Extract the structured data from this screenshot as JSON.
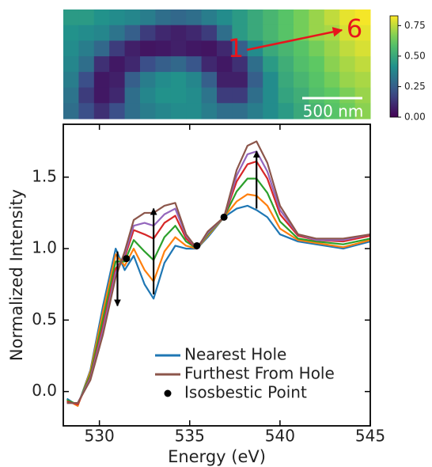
{
  "chart_data": [
    {
      "type": "heatmap",
      "values": [
        [
          0.45,
          0.45,
          0.42,
          0.4,
          0.38,
          0.35,
          0.3,
          0.28,
          0.3,
          0.35,
          0.4,
          0.45,
          0.5,
          0.55,
          0.6,
          0.65,
          0.7,
          0.75,
          0.8,
          0.82
        ],
        [
          0.42,
          0.4,
          0.38,
          0.32,
          0.25,
          0.15,
          0.1,
          0.08,
          0.1,
          0.15,
          0.3,
          0.45,
          0.5,
          0.55,
          0.6,
          0.65,
          0.7,
          0.72,
          0.78,
          0.8
        ],
        [
          0.4,
          0.35,
          0.28,
          0.15,
          0.08,
          0.05,
          0.06,
          0.08,
          0.06,
          0.05,
          0.1,
          0.25,
          0.4,
          0.5,
          0.55,
          0.6,
          0.65,
          0.7,
          0.75,
          0.78
        ],
        [
          0.38,
          0.3,
          0.12,
          0.06,
          0.1,
          0.2,
          0.25,
          0.28,
          0.22,
          0.1,
          0.06,
          0.12,
          0.3,
          0.45,
          0.52,
          0.58,
          0.62,
          0.68,
          0.72,
          0.75
        ],
        [
          0.35,
          0.2,
          0.06,
          0.08,
          0.25,
          0.35,
          0.4,
          0.42,
          0.38,
          0.25,
          0.08,
          0.08,
          0.25,
          0.4,
          0.5,
          0.55,
          0.6,
          0.65,
          0.7,
          0.72
        ],
        [
          0.32,
          0.15,
          0.06,
          0.1,
          0.3,
          0.38,
          0.42,
          0.42,
          0.4,
          0.32,
          0.15,
          0.15,
          0.3,
          0.4,
          0.48,
          0.52,
          0.58,
          0.62,
          0.66,
          0.7
        ],
        [
          0.3,
          0.2,
          0.12,
          0.2,
          0.3,
          0.35,
          0.38,
          0.4,
          0.4,
          0.35,
          0.3,
          0.3,
          0.35,
          0.4,
          0.45,
          0.5,
          0.55,
          0.6,
          0.64,
          0.68
        ]
      ],
      "colormap": "viridis",
      "clim": [
        0,
        0.83
      ],
      "cticks": [
        {
          "value": 0,
          "label": "0.00"
        },
        {
          "value": 0.25,
          "label": "0.25"
        },
        {
          "value": 0.5,
          "label": "0.50"
        },
        {
          "value": 0.75,
          "label": "0.75"
        }
      ],
      "start_label": "1",
      "end_label": "6",
      "scale_bar": "500 nm"
    },
    {
      "type": "line",
      "xlabel": "Energy (eV)",
      "ylabel": "Normalized Intensity",
      "xlim": [
        528,
        545
      ],
      "ylim": [
        -0.24,
        1.87
      ],
      "xticks": [
        530,
        535,
        540,
        545
      ],
      "yticks": [
        {
          "value": 0,
          "label": "0.0"
        },
        0.5,
        {
          "value": 1,
          "label": "1.0"
        },
        1.5
      ],
      "x": [
        528.2,
        528.8,
        529.5,
        530.2,
        530.9,
        531.4,
        531.9,
        532.5,
        533.0,
        533.6,
        534.2,
        534.8,
        535.4,
        536.0,
        536.9,
        537.6,
        538.2,
        538.7,
        539.3,
        540.0,
        541.0,
        542.0,
        543.5,
        545.0
      ],
      "series": [
        {
          "name": "Nearest Hole",
          "color": "#1f77b4",
          "values": [
            -0.05,
            -0.1,
            0.15,
            0.6,
            1.0,
            0.85,
            0.95,
            0.75,
            0.65,
            0.9,
            1.02,
            1.0,
            1.0,
            1.08,
            1.22,
            1.28,
            1.3,
            1.27,
            1.22,
            1.1,
            1.05,
            1.03,
            1.0,
            1.05
          ]
        },
        {
          "color": "#ff7f0e",
          "values": [
            -0.06,
            -0.1,
            0.14,
            0.56,
            0.96,
            0.88,
            1.0,
            0.85,
            0.77,
            0.98,
            1.08,
            1.02,
            1.0,
            1.09,
            1.22,
            1.33,
            1.38,
            1.37,
            1.3,
            1.14,
            1.06,
            1.04,
            1.01,
            1.06
          ]
        },
        {
          "color": "#2ca02c",
          "values": [
            -0.06,
            -0.09,
            0.12,
            0.51,
            0.91,
            0.91,
            1.06,
            0.98,
            0.92,
            1.08,
            1.16,
            1.05,
            1.0,
            1.1,
            1.22,
            1.4,
            1.49,
            1.49,
            1.39,
            1.19,
            1.07,
            1.05,
            1.03,
            1.07
          ]
        },
        {
          "color": "#d62728",
          "values": [
            -0.07,
            -0.09,
            0.1,
            0.46,
            0.86,
            0.94,
            1.13,
            1.1,
            1.07,
            1.18,
            1.23,
            1.07,
            1.0,
            1.11,
            1.22,
            1.47,
            1.59,
            1.61,
            1.49,
            1.24,
            1.09,
            1.06,
            1.05,
            1.09
          ]
        },
        {
          "color": "#9467bd",
          "values": [
            -0.08,
            -0.08,
            0.09,
            0.43,
            0.83,
            0.96,
            1.16,
            1.18,
            1.16,
            1.24,
            1.28,
            1.09,
            1.0,
            1.11,
            1.22,
            1.51,
            1.66,
            1.68,
            1.54,
            1.27,
            1.1,
            1.06,
            1.06,
            1.1
          ]
        },
        {
          "name": "Furthest From Hole",
          "color": "#8c564b",
          "values": [
            -0.08,
            -0.08,
            0.08,
            0.4,
            0.8,
            0.98,
            1.2,
            1.25,
            1.25,
            1.3,
            1.32,
            1.1,
            1.0,
            1.12,
            1.22,
            1.55,
            1.72,
            1.75,
            1.6,
            1.3,
            1.1,
            1.07,
            1.07,
            1.1
          ]
        },
        {
          "name": "Isosbestic Point",
          "color": "#000000",
          "marker": "dot",
          "x": [
            531.5,
            535.4,
            536.9
          ],
          "values": [
            0.93,
            1.02,
            1.22
          ]
        }
      ],
      "arrows": [
        {
          "x": 531.0,
          "y": [
            0.98,
            0.6
          ]
        },
        {
          "x": 533.0,
          "y": [
            0.68,
            1.28
          ]
        },
        {
          "x": 538.7,
          "y": [
            1.28,
            1.68
          ]
        }
      ]
    }
  ]
}
